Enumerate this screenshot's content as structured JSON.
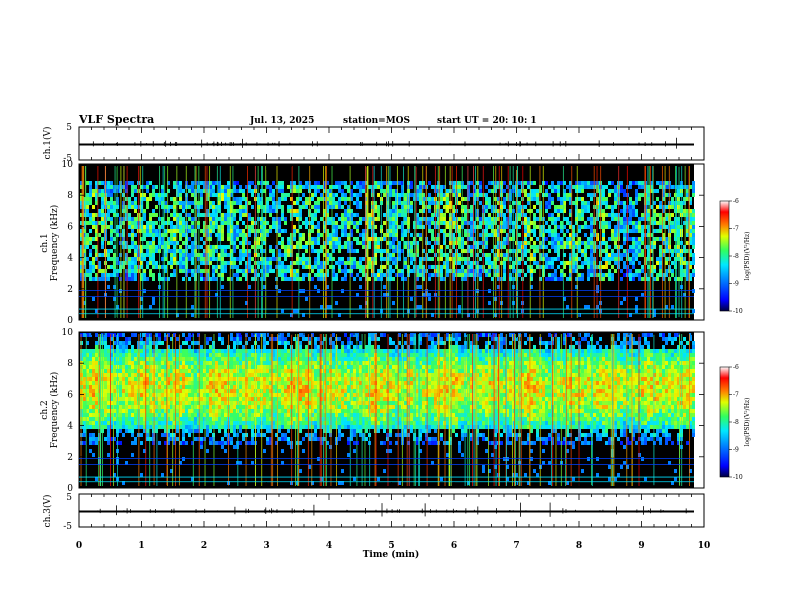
{
  "header": {
    "title": "VLF Spectra",
    "date": "Jul. 13, 2025",
    "station": "station=MOS",
    "start": "start UT =  20: 10: 1"
  },
  "chart_data": [
    {
      "type": "line",
      "name": "ch1-waveform",
      "ylabel": "ch.1(V)",
      "ylim": [
        -5,
        5
      ],
      "yticks": [
        "5",
        "-5"
      ],
      "level": -0.3
    },
    {
      "type": "heatmap",
      "name": "ch1-spectrogram",
      "ylabel_top": "ch.1",
      "ylabel": "Frequency (kHz)",
      "xlim": [
        0,
        10
      ],
      "ylim": [
        0,
        10
      ],
      "yticks": [
        "0",
        "2",
        "4",
        "6",
        "8",
        "10"
      ],
      "band_khz": [
        2.5,
        9.0
      ],
      "colorbar": {
        "label": "log(PSD)(V²/Hz)",
        "range": [
          -10,
          -6
        ],
        "ticks": [
          "-6",
          "-7",
          "-8",
          "-9",
          "-10"
        ]
      }
    },
    {
      "type": "heatmap",
      "name": "ch2-spectrogram",
      "ylabel_top": "ch.2",
      "ylabel": "Frequency (kHz)",
      "xlim": [
        0,
        10
      ],
      "ylim": [
        0,
        10
      ],
      "yticks": [
        "0",
        "2",
        "4",
        "6",
        "8",
        "10"
      ],
      "band_khz": [
        3.5,
        9.5
      ],
      "colorbar": {
        "label": "log(PSD)(V²/Hz)",
        "range": [
          -10,
          -6
        ],
        "ticks": [
          "-6",
          "-7",
          "-8",
          "-9",
          "-10"
        ]
      }
    },
    {
      "type": "line",
      "name": "ch3-waveform",
      "ylabel": "ch.3(V)",
      "ylim": [
        -5,
        5
      ],
      "yticks": [
        "5",
        "-5"
      ],
      "level": -0.3
    }
  ],
  "xaxis": {
    "label": "Time (min)",
    "ticks": [
      "0",
      "1",
      "2",
      "3",
      "4",
      "5",
      "6",
      "7",
      "8",
      "9",
      "10"
    ],
    "range": [
      0,
      10
    ],
    "data_end": 9.84
  },
  "colors": {
    "background": "#000000",
    "scale": [
      "#00005a",
      "#0000ff",
      "#0080ff",
      "#00e0ff",
      "#40ff60",
      "#ffff00",
      "#ff8000",
      "#ff0000",
      "#ffffff"
    ]
  }
}
